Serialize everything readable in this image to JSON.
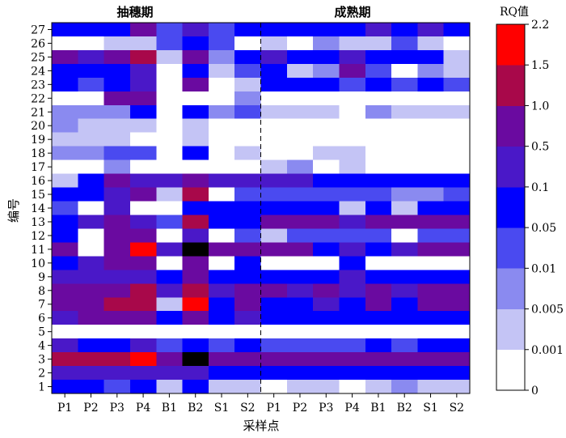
{
  "chart_data": {
    "type": "heatmap",
    "panels": [
      "抽穗期",
      "成熟期"
    ],
    "xlabel": "采样点",
    "ylabel": "编号",
    "x_categories": [
      "P1",
      "P2",
      "P3",
      "P4",
      "B1",
      "B2",
      "S1",
      "S2"
    ],
    "y_categories": [
      "1",
      "2",
      "3",
      "4",
      "5",
      "6",
      "7",
      "8",
      "9",
      "10",
      "11",
      "12",
      "13",
      "14",
      "15",
      "16",
      "17",
      "18",
      "19",
      "20",
      "21",
      "22",
      "23",
      "24",
      "25",
      "26",
      "27"
    ],
    "colorbar": {
      "title": "RQ值",
      "tick_labels": [
        "0",
        "0.001",
        "0.005",
        "0.01",
        "0.05",
        "0.1",
        "0.5",
        "1.0",
        "1.5",
        "2.2"
      ],
      "colors": [
        "#ffffff",
        "#c4c4f5",
        "#8a8af0",
        "#4a4af0",
        "#0000ff",
        "#4a18c8",
        "#6a0aa0",
        "#a8084a",
        "#ff0000"
      ]
    },
    "rows_top_to_bottom": [
      {
        "id": "27",
        "heading": [
          4,
          4,
          4,
          6,
          3,
          5,
          3,
          4
        ],
        "maturity": [
          4,
          4,
          4,
          4,
          5,
          4,
          5,
          4
        ]
      },
      {
        "id": "26",
        "heading": [
          0,
          0,
          1,
          1,
          3,
          4,
          3,
          0
        ],
        "maturity": [
          1,
          0,
          2,
          1,
          1,
          3,
          1,
          0
        ]
      },
      {
        "id": "25",
        "heading": [
          6,
          5,
          6,
          7,
          1,
          6,
          2,
          4
        ],
        "maturity": [
          5,
          4,
          4,
          5,
          4,
          4,
          4,
          1
        ]
      },
      {
        "id": "24",
        "heading": [
          4,
          4,
          4,
          5,
          0,
          4,
          1,
          3
        ],
        "maturity": [
          4,
          1,
          2,
          6,
          3,
          0,
          2,
          1
        ]
      },
      {
        "id": "23",
        "heading": [
          4,
          3,
          4,
          5,
          0,
          6,
          0,
          1
        ],
        "maturity": [
          4,
          4,
          4,
          3,
          4,
          3,
          4,
          3
        ]
      },
      {
        "id": "22",
        "heading": [
          0,
          0,
          6,
          6,
          0,
          0,
          0,
          2
        ],
        "maturity": [
          0,
          0,
          0,
          0,
          0,
          0,
          0,
          0
        ]
      },
      {
        "id": "21",
        "heading": [
          2,
          2,
          2,
          4,
          0,
          4,
          2,
          3
        ],
        "maturity": [
          1,
          1,
          1,
          0,
          2,
          1,
          1,
          1
        ]
      },
      {
        "id": "20",
        "heading": [
          2,
          1,
          1,
          1,
          0,
          1,
          0,
          0
        ],
        "maturity": [
          0,
          0,
          0,
          0,
          0,
          0,
          0,
          0
        ]
      },
      {
        "id": "19",
        "heading": [
          1,
          1,
          1,
          0,
          0,
          1,
          0,
          0
        ],
        "maturity": [
          0,
          0,
          0,
          0,
          0,
          0,
          0,
          0
        ]
      },
      {
        "id": "18",
        "heading": [
          2,
          2,
          3,
          3,
          0,
          4,
          0,
          1
        ],
        "maturity": [
          0,
          0,
          1,
          1,
          0,
          0,
          0,
          0
        ]
      },
      {
        "id": "17",
        "heading": [
          0,
          0,
          2,
          0,
          0,
          0,
          0,
          0
        ],
        "maturity": [
          1,
          2,
          0,
          1,
          0,
          0,
          0,
          0
        ]
      },
      {
        "id": "16",
        "heading": [
          1,
          4,
          6,
          5,
          5,
          6,
          5,
          5
        ],
        "maturity": [
          5,
          5,
          4,
          4,
          4,
          4,
          4,
          4
        ]
      },
      {
        "id": "15",
        "heading": [
          4,
          4,
          5,
          6,
          1,
          7,
          0,
          3
        ],
        "maturity": [
          3,
          3,
          3,
          3,
          3,
          2,
          2,
          3
        ]
      },
      {
        "id": "14",
        "heading": [
          3,
          0,
          5,
          0,
          0,
          4,
          4,
          4
        ],
        "maturity": [
          4,
          4,
          4,
          1,
          4,
          1,
          4,
          4
        ]
      },
      {
        "id": "13",
        "heading": [
          4,
          5,
          6,
          5,
          3,
          7,
          4,
          4
        ],
        "maturity": [
          6,
          6,
          6,
          5,
          6,
          6,
          6,
          6
        ]
      },
      {
        "id": "12",
        "heading": [
          4,
          0,
          6,
          6,
          0,
          5,
          0,
          3
        ],
        "maturity": [
          1,
          3,
          3,
          3,
          3,
          0,
          3,
          3
        ]
      },
      {
        "id": "11",
        "heading": [
          6,
          0,
          6,
          8,
          5,
          9,
          6,
          6
        ],
        "maturity": [
          6,
          6,
          4,
          5,
          4,
          5,
          6,
          6
        ]
      },
      {
        "id": "10",
        "heading": [
          4,
          5,
          6,
          6,
          0,
          6,
          0,
          4
        ],
        "maturity": [
          0,
          0,
          0,
          4,
          0,
          0,
          0,
          0
        ]
      },
      {
        "id": "9",
        "heading": [
          5,
          5,
          5,
          5,
          4,
          6,
          4,
          4
        ],
        "maturity": [
          4,
          4,
          4,
          5,
          4,
          4,
          4,
          4
        ]
      },
      {
        "id": "8",
        "heading": [
          6,
          6,
          6,
          7,
          5,
          7,
          5,
          6
        ],
        "maturity": [
          6,
          5,
          6,
          5,
          6,
          5,
          6,
          6
        ]
      },
      {
        "id": "7",
        "heading": [
          6,
          6,
          7,
          7,
          1,
          8,
          4,
          6
        ],
        "maturity": [
          4,
          4,
          5,
          4,
          6,
          4,
          6,
          6
        ]
      },
      {
        "id": "6",
        "heading": [
          5,
          6,
          6,
          6,
          4,
          6,
          4,
          5
        ],
        "maturity": [
          4,
          4,
          4,
          4,
          4,
          4,
          4,
          4
        ]
      },
      {
        "id": "5",
        "heading": [
          0,
          0,
          0,
          0,
          0,
          0,
          0,
          0
        ],
        "maturity": [
          0,
          0,
          0,
          0,
          0,
          0,
          0,
          0
        ]
      },
      {
        "id": "4",
        "heading": [
          5,
          4,
          4,
          5,
          3,
          4,
          3,
          4
        ],
        "maturity": [
          3,
          3,
          3,
          3,
          4,
          3,
          4,
          4
        ]
      },
      {
        "id": "3",
        "heading": [
          7,
          7,
          7,
          8,
          6,
          9,
          6,
          6
        ],
        "maturity": [
          6,
          6,
          6,
          6,
          6,
          6,
          6,
          6
        ]
      },
      {
        "id": "2",
        "heading": [
          5,
          5,
          5,
          5,
          5,
          5,
          4,
          4
        ],
        "maturity": [
          4,
          4,
          4,
          4,
          4,
          4,
          4,
          4
        ]
      },
      {
        "id": "1",
        "heading": [
          4,
          4,
          3,
          4,
          1,
          4,
          1,
          1
        ],
        "maturity": [
          0,
          1,
          1,
          0,
          1,
          2,
          1,
          1
        ]
      }
    ]
  }
}
